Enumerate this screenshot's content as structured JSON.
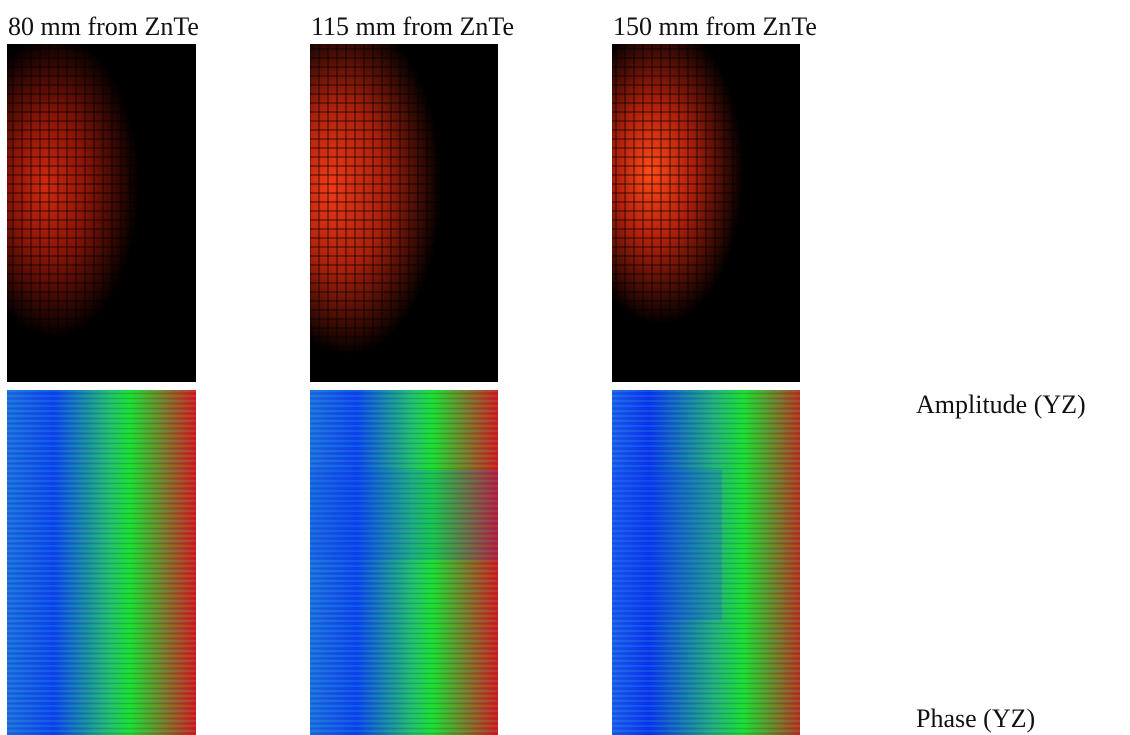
{
  "columns": [
    {
      "label": "80 mm from ZnTe"
    },
    {
      "label": "115 mm from ZnTe"
    },
    {
      "label": "150 mm from ZnTe"
    }
  ],
  "rows": [
    {
      "label": "Amplitude (YZ)"
    },
    {
      "label": "Phase (YZ)"
    }
  ]
}
